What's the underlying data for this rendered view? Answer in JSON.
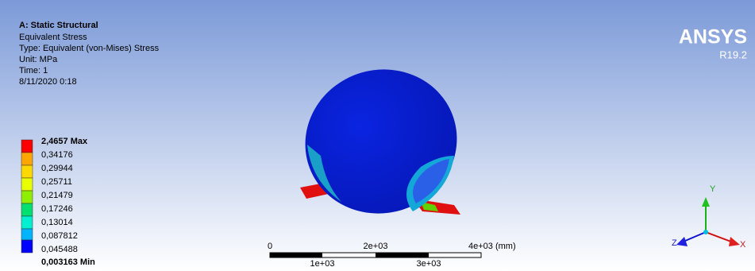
{
  "header": {
    "lines": [
      "A: Static Structural",
      "Equivalent Stress",
      "Type: Equivalent (von-Mises) Stress",
      "Unit: MPa",
      "Time: 1",
      "8/11/2020 0:18"
    ]
  },
  "legend": {
    "labels": [
      "2,4657 Max",
      "0,34176",
      "0,29944",
      "0,25711",
      "0,21479",
      "0,17246",
      "0,13014",
      "0,087812",
      "0,045488",
      "0,003163 Min"
    ]
  },
  "scale_bar": {
    "top_labels": [
      "0",
      "2e+03",
      "4e+03 (mm)"
    ],
    "bottom_labels": [
      "1e+03",
      "3e+03"
    ]
  },
  "logo": {
    "name": "ANSYS",
    "version": "R19.2"
  },
  "triad": {
    "y": "Y",
    "z": "Z",
    "x": "X"
  }
}
